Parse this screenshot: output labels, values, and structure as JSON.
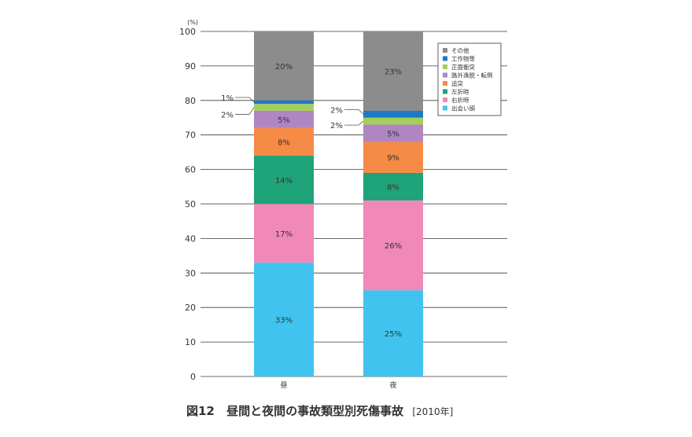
{
  "chart_data": {
    "type": "bar",
    "stacked": true,
    "unit_label": "(%)",
    "categories": [
      "昼",
      "夜"
    ],
    "ylim": [
      0,
      100
    ],
    "yticks": [
      0,
      10,
      20,
      30,
      40,
      50,
      60,
      70,
      80,
      90,
      100
    ],
    "grid": true,
    "legend_position": "top-right",
    "series": [
      {
        "name": "出会い頭",
        "color": "#40c4ef",
        "values": [
          33,
          25
        ],
        "labels": [
          "33%",
          "25%"
        ]
      },
      {
        "name": "右折時",
        "color": "#f088b8",
        "values": [
          17,
          26
        ],
        "labels": [
          "17%",
          "26%"
        ]
      },
      {
        "name": "左折時",
        "color": "#1fa378",
        "values": [
          14,
          8
        ],
        "labels": [
          "14%",
          "8%"
        ]
      },
      {
        "name": "追突",
        "color": "#f68b45",
        "values": [
          8,
          9
        ],
        "labels": [
          "8%",
          "9%"
        ]
      },
      {
        "name": "路外逸脱・転倒",
        "color": "#b086c2",
        "values": [
          5,
          5
        ],
        "labels": [
          "5%",
          "5%"
        ]
      },
      {
        "name": "正面衝突",
        "color": "#a5cf5c",
        "values": [
          2,
          2
        ],
        "labels": [
          "2%",
          "2%"
        ]
      },
      {
        "name": "工作物等",
        "color": "#1f78c8",
        "values": [
          1,
          2
        ],
        "labels": [
          "1%",
          "2%"
        ]
      },
      {
        "name": "その他",
        "color": "#8c8c8c",
        "values": [
          20,
          23
        ],
        "labels": [
          "20%",
          "23%"
        ]
      }
    ]
  },
  "caption": {
    "figure": "図12",
    "title": "昼間と夜間の事故類型別死傷事故",
    "year": "[2010年]"
  }
}
